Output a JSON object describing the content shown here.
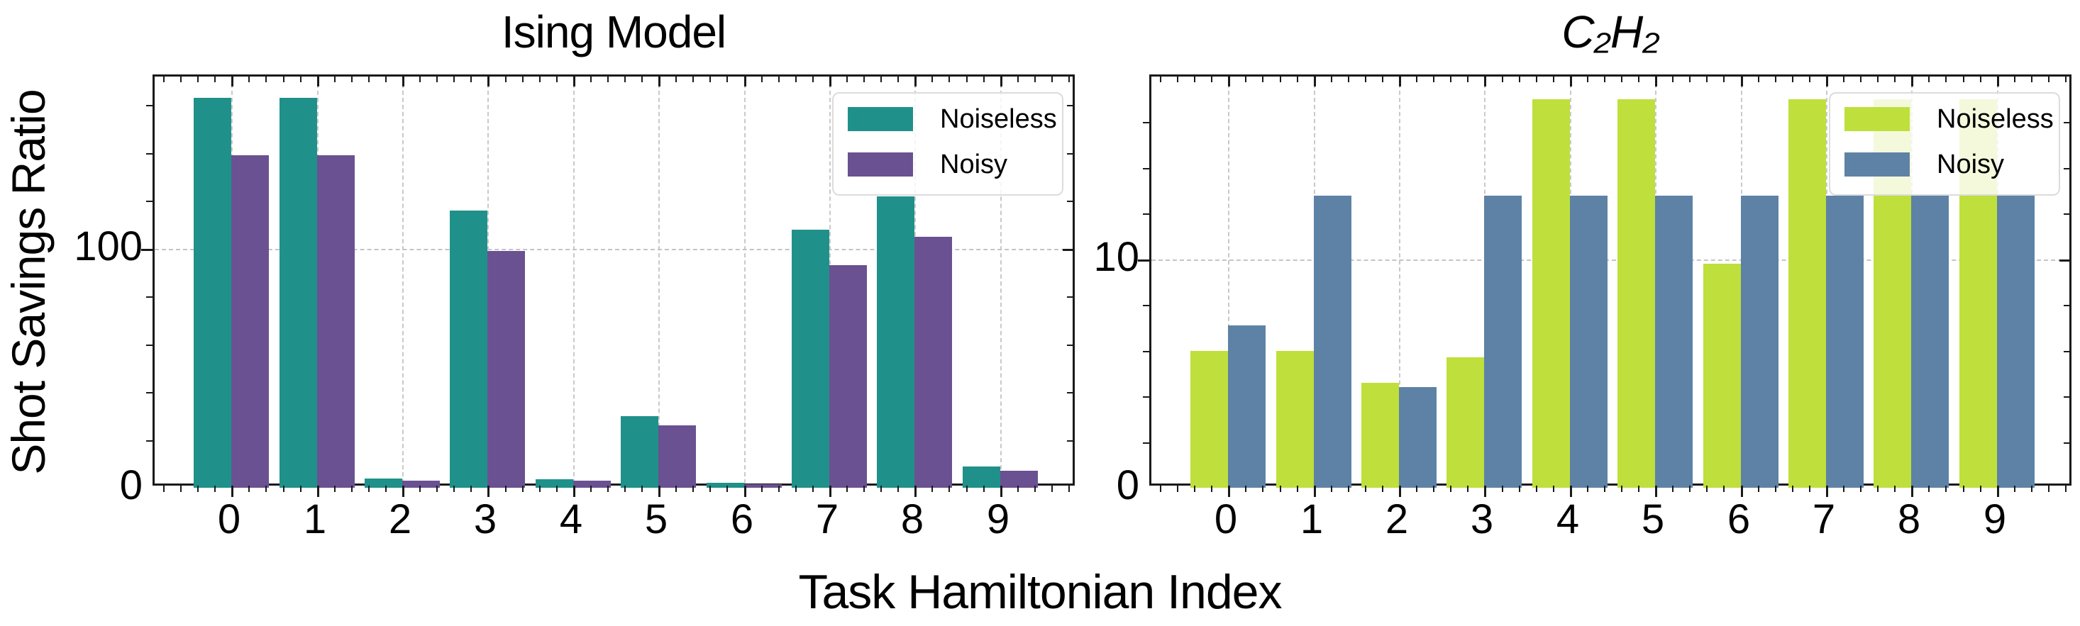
{
  "figure": {
    "ylabel": "Shot Savings Ratio",
    "xlabel": "Task Hamiltonian Index"
  },
  "colors": {
    "ising_noiseless": "#1f918a",
    "ising_noisy": "#6a5191",
    "c2h2_noiseless": "#bfdf3c",
    "c2h2_noisy": "#5d82a6",
    "axis": "#1a1a1a",
    "grid": "#c9c9c9"
  },
  "chart_data": [
    {
      "type": "bar",
      "title": "Ising Model",
      "title_italic": false,
      "categories": [
        "0",
        "1",
        "2",
        "3",
        "4",
        "5",
        "6",
        "7",
        "8",
        "9"
      ],
      "series": [
        {
          "name": "Noiseless",
          "color": "#1f918a",
          "values": [
            163,
            163,
            4,
            116,
            3.5,
            30,
            2,
            108,
            122,
            9
          ],
          "hatched_indices": [
            1
          ]
        },
        {
          "name": "Noisy",
          "color": "#6a5191",
          "values": [
            139,
            139,
            3,
            99,
            3,
            26,
            1.5,
            93,
            105,
            7
          ],
          "hatched_indices": [
            1
          ]
        }
      ],
      "ylim": [
        0,
        172
      ],
      "yticks": [
        {
          "value": 0,
          "label": "0"
        },
        {
          "value": 100,
          "label": "100"
        }
      ],
      "y_minor_step": 20,
      "grid": "vertical dashed at each category, horizontal dashed at 100",
      "legend_position": "upper right",
      "legend_labels": [
        "Noiseless",
        "Noisy"
      ]
    },
    {
      "type": "bar",
      "title": "C₂H₂",
      "title_italic": true,
      "categories": [
        "0",
        "1",
        "2",
        "3",
        "4",
        "5",
        "6",
        "7",
        "8",
        "9"
      ],
      "series": [
        {
          "name": "Noiseless",
          "color": "#bfdf3c",
          "values": [
            6.0,
            6.0,
            4.6,
            5.7,
            17,
            17,
            9.8,
            17,
            17,
            17
          ],
          "hatched_indices": [
            4,
            5,
            8,
            9
          ]
        },
        {
          "name": "Noisy",
          "color": "#5d82a6",
          "values": [
            7.1,
            12.8,
            4.4,
            12.8,
            12.8,
            12.8,
            12.8,
            12.8,
            12.8,
            12.8
          ],
          "hatched_indices": [
            4,
            5,
            6,
            7
          ]
        }
      ],
      "ylim": [
        0,
        18
      ],
      "yticks": [
        {
          "value": 0,
          "label": "0"
        },
        {
          "value": 10,
          "label": "10"
        }
      ],
      "y_minor_step": 2,
      "grid": "vertical dashed at each category, horizontal dashed at 10",
      "legend_position": "upper right",
      "legend_labels": [
        "Noiseless",
        "Noisy"
      ]
    }
  ]
}
